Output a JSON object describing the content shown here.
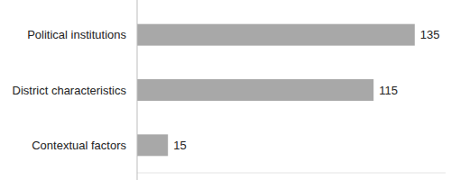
{
  "chart_data": {
    "type": "bar",
    "orientation": "horizontal",
    "categories": [
      "Political institutions",
      "District characteristics",
      "Contextual factors"
    ],
    "values": [
      135,
      115,
      15
    ],
    "color": "#a8a8a8",
    "xlim": [
      0,
      150
    ],
    "data_labels": true,
    "tick_labels": false,
    "grid": false
  }
}
